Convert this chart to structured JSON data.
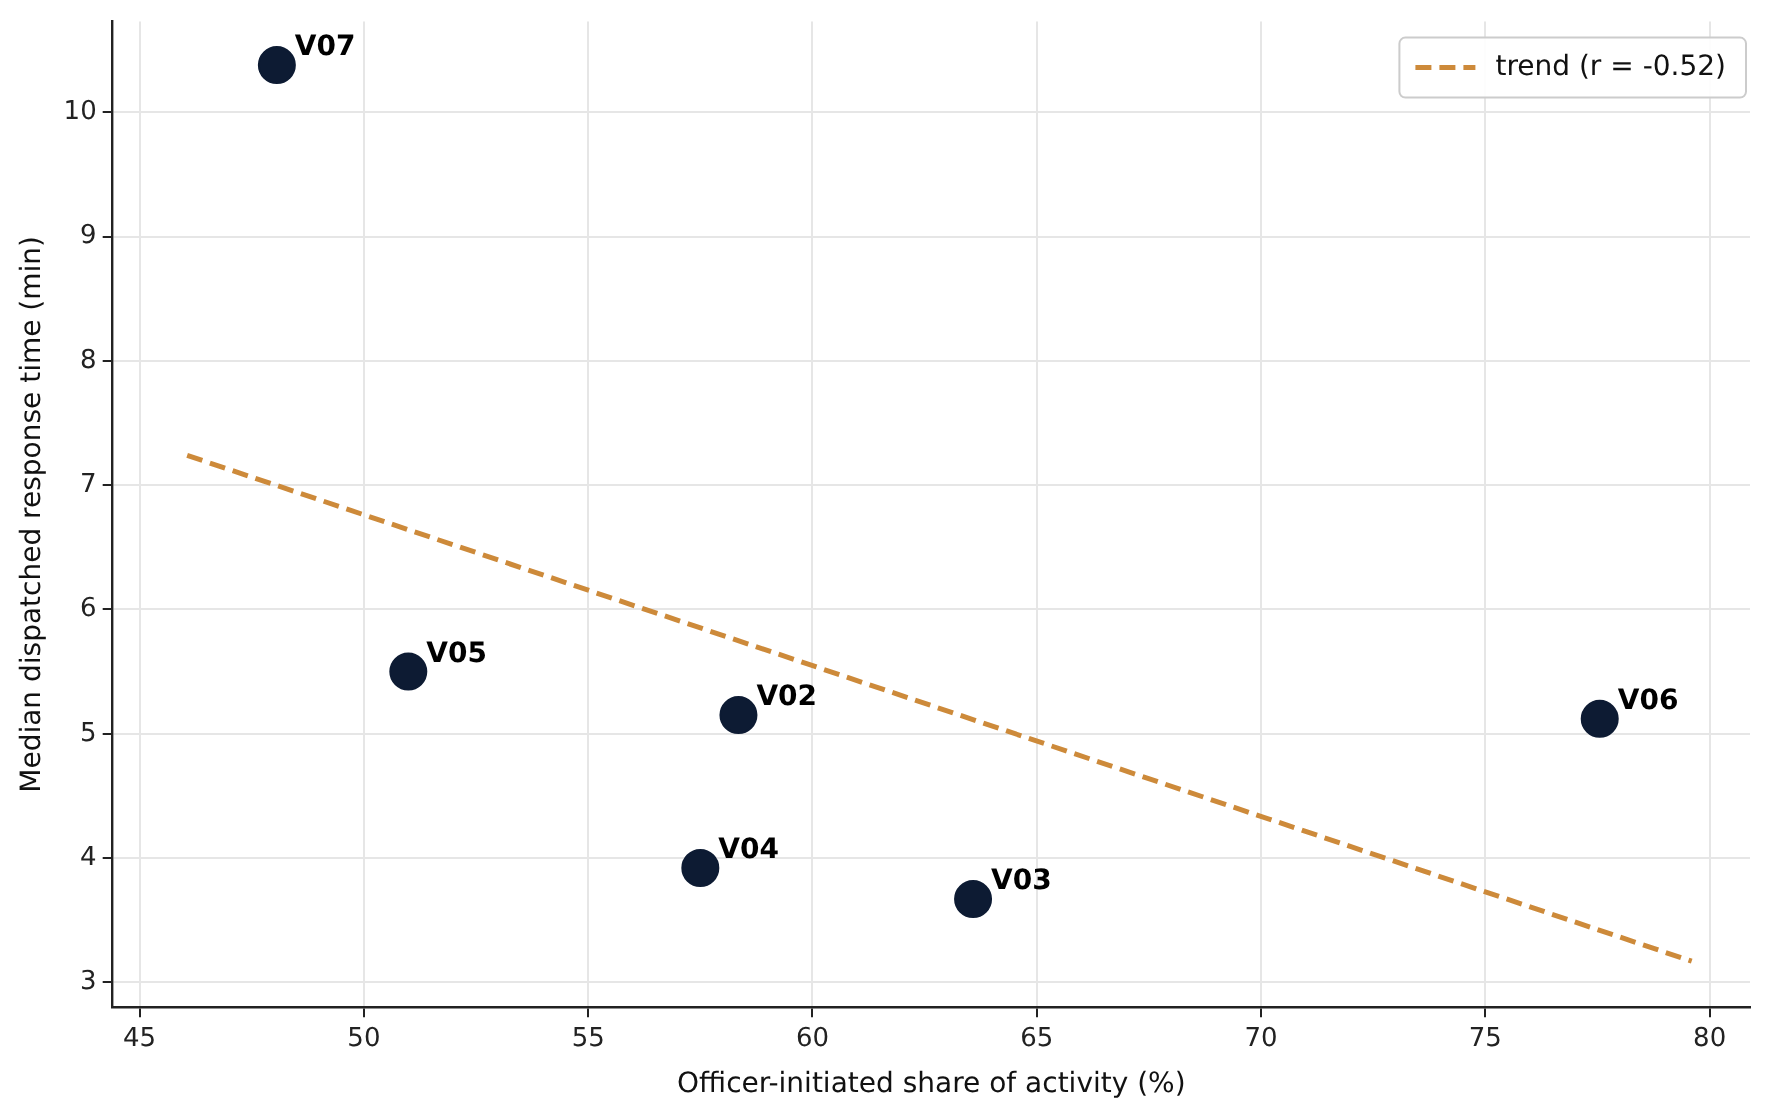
{
  "chart_data": {
    "type": "scatter",
    "xlabel": "Officer-initiated share of activity (%)",
    "ylabel": "Median dispatched response time (min)",
    "xlim": [
      44.4,
      80.9
    ],
    "xticks": [
      45,
      50,
      55,
      60,
      65,
      70,
      75,
      80
    ],
    "ylim": [
      2.8,
      10.73
    ],
    "yticks": [
      3,
      4,
      5,
      6,
      7,
      8,
      9,
      10
    ],
    "grid": true,
    "legend": "top right",
    "marker": "circle",
    "series": [
      {
        "color": "#0d1b33",
        "x": [
          48.06,
          50.99,
          58.35,
          57.5,
          63.58,
          77.55
        ],
        "values": [
          10.38,
          5.5,
          5.15,
          3.92,
          3.67,
          5.12
        ]
      },
      {
        "type": "line",
        "name": "trend (r = -0.52)",
        "color": "#cd8a3a",
        "line_style": "dashed",
        "marker": "none",
        "x": [
          46.06,
          79.6
        ],
        "values": [
          7.24,
          3.17
        ]
      }
    ],
    "annotations": [
      {
        "text": "V07",
        "x": 48.06,
        "y": 10.38
      },
      {
        "text": "V05",
        "x": 50.99,
        "y": 5.5
      },
      {
        "text": "V02",
        "x": 58.35,
        "y": 5.15
      },
      {
        "text": "V04",
        "x": 57.5,
        "y": 3.92
      },
      {
        "text": "V03",
        "x": 63.58,
        "y": 3.67
      },
      {
        "text": "V06",
        "x": 77.55,
        "y": 5.12
      }
    ]
  }
}
